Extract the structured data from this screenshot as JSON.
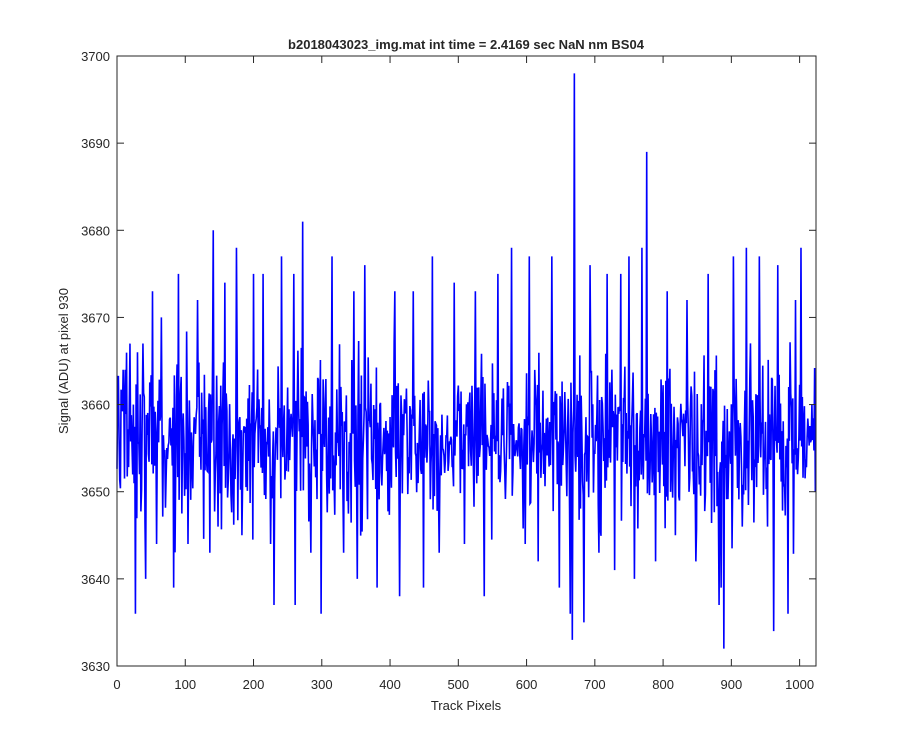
{
  "chart_data": {
    "type": "line",
    "title": "b2018043023_img.mat int time = 2.4169 sec  NaN nm BS04",
    "xlabel": "Track Pixels",
    "ylabel": "Signal (ADU) at pixel 930",
    "xlim": [
      0,
      1024
    ],
    "ylim": [
      3630,
      3700
    ],
    "xticks": [
      0,
      100,
      200,
      300,
      400,
      500,
      600,
      700,
      800,
      900,
      1000
    ],
    "yticks": [
      3630,
      3640,
      3650,
      3660,
      3670,
      3680,
      3690,
      3700
    ],
    "grid": false,
    "box": true,
    "series": [
      {
        "color": "#0000ff",
        "n_points": 1024,
        "baseline": 3656,
        "noise_range": [
          3644,
          3668
        ],
        "peaks": [
          {
            "x": 1,
            "y": 3663
          },
          {
            "x": 9,
            "y": 3664
          },
          {
            "x": 12,
            "y": 3664
          },
          {
            "x": 19,
            "y": 3667
          },
          {
            "x": 24,
            "y": 3660
          },
          {
            "x": 27,
            "y": 3636
          },
          {
            "x": 38,
            "y": 3667
          },
          {
            "x": 42,
            "y": 3640
          },
          {
            "x": 52,
            "y": 3673
          },
          {
            "x": 58,
            "y": 3644
          },
          {
            "x": 65,
            "y": 3670
          },
          {
            "x": 83,
            "y": 3639
          },
          {
            "x": 90,
            "y": 3675
          },
          {
            "x": 104,
            "y": 3644
          },
          {
            "x": 118,
            "y": 3672
          },
          {
            "x": 136,
            "y": 3643
          },
          {
            "x": 141,
            "y": 3680
          },
          {
            "x": 148,
            "y": 3646
          },
          {
            "x": 158,
            "y": 3674
          },
          {
            "x": 175,
            "y": 3678
          },
          {
            "x": 183,
            "y": 3645
          },
          {
            "x": 200,
            "y": 3675
          },
          {
            "x": 214,
            "y": 3675
          },
          {
            "x": 225,
            "y": 3644
          },
          {
            "x": 230,
            "y": 3637
          },
          {
            "x": 241,
            "y": 3677
          },
          {
            "x": 259,
            "y": 3675
          },
          {
            "x": 261,
            "y": 3637
          },
          {
            "x": 272,
            "y": 3681
          },
          {
            "x": 284,
            "y": 3643
          },
          {
            "x": 299,
            "y": 3636
          },
          {
            "x": 315,
            "y": 3677
          },
          {
            "x": 332,
            "y": 3643
          },
          {
            "x": 347,
            "y": 3673
          },
          {
            "x": 352,
            "y": 3640
          },
          {
            "x": 363,
            "y": 3676
          },
          {
            "x": 381,
            "y": 3639
          },
          {
            "x": 407,
            "y": 3673
          },
          {
            "x": 414,
            "y": 3638
          },
          {
            "x": 434,
            "y": 3673
          },
          {
            "x": 449,
            "y": 3639
          },
          {
            "x": 462,
            "y": 3677
          },
          {
            "x": 472,
            "y": 3643
          },
          {
            "x": 494,
            "y": 3674
          },
          {
            "x": 509,
            "y": 3644
          },
          {
            "x": 525,
            "y": 3673
          },
          {
            "x": 538,
            "y": 3638
          },
          {
            "x": 558,
            "y": 3675
          },
          {
            "x": 578,
            "y": 3678
          },
          {
            "x": 598,
            "y": 3644
          },
          {
            "x": 604,
            "y": 3677
          },
          {
            "x": 617,
            "y": 3642
          },
          {
            "x": 637,
            "y": 3677
          },
          {
            "x": 648,
            "y": 3639
          },
          {
            "x": 664,
            "y": 3636
          },
          {
            "x": 667,
            "y": 3633
          },
          {
            "x": 670,
            "y": 3698
          },
          {
            "x": 684,
            "y": 3635
          },
          {
            "x": 693,
            "y": 3676
          },
          {
            "x": 706,
            "y": 3643
          },
          {
            "x": 718,
            "y": 3675
          },
          {
            "x": 729,
            "y": 3641
          },
          {
            "x": 738,
            "y": 3675
          },
          {
            "x": 750,
            "y": 3677
          },
          {
            "x": 758,
            "y": 3640
          },
          {
            "x": 769,
            "y": 3678
          },
          {
            "x": 776,
            "y": 3689
          },
          {
            "x": 789,
            "y": 3642
          },
          {
            "x": 806,
            "y": 3673
          },
          {
            "x": 818,
            "y": 3645
          },
          {
            "x": 835,
            "y": 3672
          },
          {
            "x": 848,
            "y": 3642
          },
          {
            "x": 866,
            "y": 3675
          },
          {
            "x": 882,
            "y": 3637
          },
          {
            "x": 885,
            "y": 3639
          },
          {
            "x": 889,
            "y": 3632
          },
          {
            "x": 903,
            "y": 3677
          },
          {
            "x": 916,
            "y": 3646
          },
          {
            "x": 922,
            "y": 3678
          },
          {
            "x": 941,
            "y": 3677
          },
          {
            "x": 953,
            "y": 3646
          },
          {
            "x": 962,
            "y": 3634
          },
          {
            "x": 968,
            "y": 3676
          },
          {
            "x": 983,
            "y": 3636
          },
          {
            "x": 994,
            "y": 3672
          },
          {
            "x": 1002,
            "y": 3678
          },
          {
            "x": 1013,
            "y": 3657
          },
          {
            "x": 1018,
            "y": 3660
          },
          {
            "x": 1023,
            "y": 3650
          }
        ]
      }
    ]
  }
}
